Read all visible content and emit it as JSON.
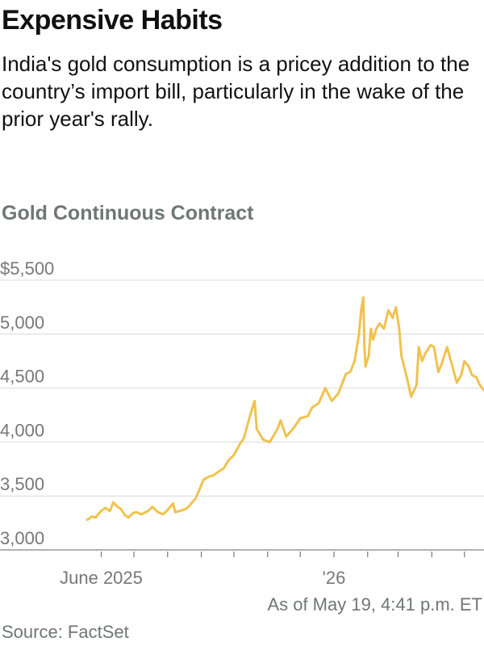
{
  "header": {
    "title": "Expensive Habits",
    "subtitle": "India's gold consumption is a pricey addition to the country’s import bill, particularly in the wake of the prior year's rally."
  },
  "footer": {
    "note": "As of May 19, 4:41 p.m. ET",
    "source": "Source: FactSet"
  },
  "colors": {
    "line": "#f0c24f",
    "grid": "#d9d9d9",
    "axis": "#777777"
  },
  "chart_data": {
    "type": "line",
    "title": "Gold Continuous Contract",
    "xlabel": "",
    "ylabel": "",
    "ylim": [
      3000,
      5500
    ],
    "xlim": [
      "2025-05-01",
      "2026-05-19"
    ],
    "grid": true,
    "y_ticks": [
      {
        "value": 5500,
        "label": "$5,500"
      },
      {
        "value": 5000,
        "label": "5,000"
      },
      {
        "value": 4500,
        "label": "4,500"
      },
      {
        "value": 4000,
        "label": "4,000"
      },
      {
        "value": 3500,
        "label": "3,500"
      },
      {
        "value": 3000,
        "label": "3,000"
      }
    ],
    "x_tick_marks": [
      "2025-06-01",
      "2025-07-01",
      "2025-08-01",
      "2025-09-01",
      "2025-10-01",
      "2025-11-01",
      "2025-12-01",
      "2026-01-01",
      "2026-02-01",
      "2026-03-01",
      "2026-04-01",
      "2026-05-01"
    ],
    "x_labels": [
      {
        "date": "2025-06-01",
        "label": "June 2025"
      },
      {
        "date": "2026-01-01",
        "label": "'26"
      }
    ],
    "series": [
      {
        "x": [
          "2025-05-19",
          "2025-05-21",
          "2025-05-23",
          "2025-05-27",
          "2025-05-29",
          "2025-06-02",
          "2025-06-05",
          "2025-06-09",
          "2025-06-12",
          "2025-06-16",
          "2025-06-19",
          "2025-06-23",
          "2025-06-26",
          "2025-06-30",
          "2025-07-03",
          "2025-07-08",
          "2025-07-14",
          "2025-07-18",
          "2025-07-23",
          "2025-07-28",
          "2025-08-01",
          "2025-08-06",
          "2025-08-08",
          "2025-08-12",
          "2025-08-18",
          "2025-08-22",
          "2025-08-27",
          "2025-09-01",
          "2025-09-03",
          "2025-09-08",
          "2025-09-12",
          "2025-09-16",
          "2025-09-22",
          "2025-09-26",
          "2025-10-01",
          "2025-10-07",
          "2025-10-10",
          "2025-10-16",
          "2025-10-20",
          "2025-10-22",
          "2025-10-28",
          "2025-11-03",
          "2025-11-10",
          "2025-11-13",
          "2025-11-18",
          "2025-11-25",
          "2025-12-01",
          "2025-12-08",
          "2025-12-12",
          "2025-12-18",
          "2025-12-24",
          "2025-12-30",
          "2026-01-05",
          "2026-01-12",
          "2026-01-16",
          "2026-01-20",
          "2026-01-24",
          "2026-01-26",
          "2026-01-28",
          "2026-01-29",
          "2026-01-30",
          "2026-02-02",
          "2026-02-04",
          "2026-02-06",
          "2026-02-09",
          "2026-02-12",
          "2026-02-16",
          "2026-02-20",
          "2026-02-24",
          "2026-02-27",
          "2026-03-02",
          "2026-03-04",
          "2026-03-09",
          "2026-03-13",
          "2026-03-18",
          "2026-03-20",
          "2026-03-23",
          "2026-03-26",
          "2026-03-31",
          "2026-04-03",
          "2026-04-07",
          "2026-04-10",
          "2026-04-15",
          "2026-04-20",
          "2026-04-24",
          "2026-04-28",
          "2026-05-01",
          "2026-05-05",
          "2026-05-08",
          "2026-05-12",
          "2026-05-15",
          "2026-05-19"
        ],
        "y": [
          3280,
          3290,
          3310,
          3300,
          3330,
          3370,
          3390,
          3360,
          3440,
          3400,
          3380,
          3320,
          3300,
          3340,
          3350,
          3330,
          3360,
          3400,
          3350,
          3330,
          3370,
          3430,
          3350,
          3360,
          3380,
          3420,
          3480,
          3600,
          3650,
          3680,
          3690,
          3720,
          3760,
          3830,
          3880,
          3990,
          4030,
          4250,
          4380,
          4120,
          4020,
          4000,
          4120,
          4200,
          4050,
          4130,
          4220,
          4240,
          4320,
          4360,
          4500,
          4380,
          4450,
          4630,
          4650,
          4750,
          5000,
          5220,
          5340,
          4900,
          4700,
          4800,
          5050,
          4950,
          5050,
          5100,
          5050,
          5220,
          5150,
          5250,
          5050,
          4800,
          4600,
          4420,
          4530,
          4880,
          4750,
          4820,
          4900,
          4880,
          4650,
          4720,
          4880,
          4700,
          4550,
          4620,
          4750,
          4700,
          4620,
          4600,
          4530,
          4480
        ]
      }
    ]
  }
}
